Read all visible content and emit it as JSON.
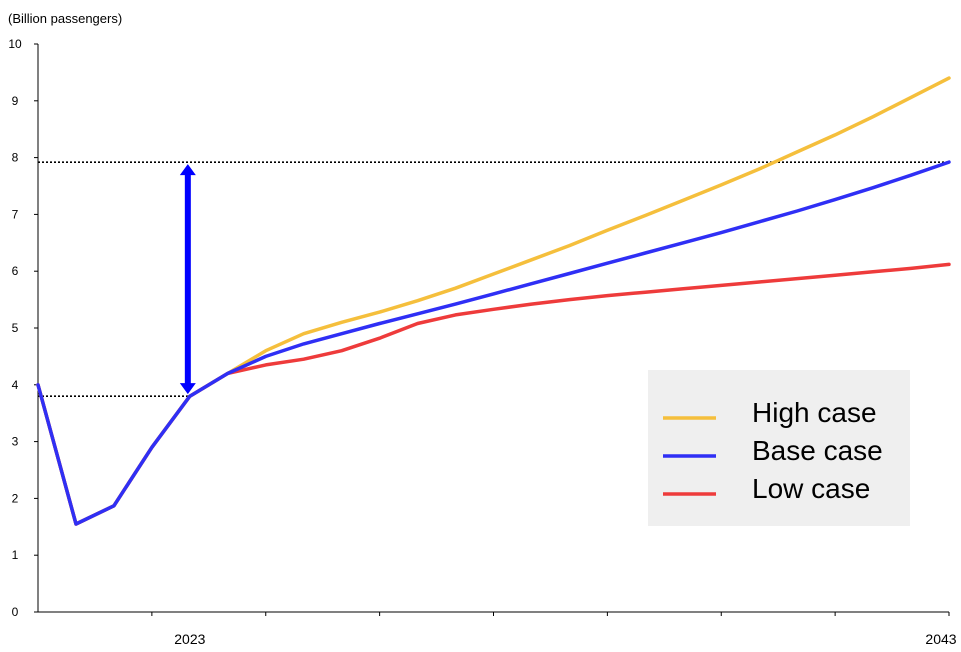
{
  "chart_data": {
    "type": "line",
    "unit_label": "(Billion passengers)",
    "y_ticks": [
      "0",
      "1",
      "2",
      "3",
      "4",
      "5",
      "6",
      "7",
      "8",
      "9",
      "10"
    ],
    "ylim": [
      0,
      10
    ],
    "xlim": [
      2019,
      2043
    ],
    "x_tick_labels": [
      {
        "x": 2023,
        "label": "2023"
      },
      {
        "x": 2043,
        "label": "2043"
      }
    ],
    "grid": false,
    "legend_position": "bottom-right",
    "series": [
      {
        "name": "High case",
        "color": "#f5bf3c",
        "x": [
          2019,
          2020,
          2021,
          2022,
          2023,
          2024,
          2025,
          2026,
          2027,
          2028,
          2029,
          2030,
          2031,
          2032,
          2033,
          2034,
          2035,
          2036,
          2037,
          2038,
          2039,
          2040,
          2041,
          2042,
          2043
        ],
        "y": [
          4.0,
          1.55,
          1.87,
          2.9,
          3.8,
          4.2,
          4.6,
          4.9,
          5.1,
          5.28,
          5.48,
          5.7,
          5.95,
          6.2,
          6.45,
          6.72,
          6.98,
          7.25,
          7.52,
          7.8,
          8.1,
          8.4,
          8.72,
          9.06,
          9.4
        ]
      },
      {
        "name": "Base case",
        "color": "#2f2ff5",
        "x": [
          2019,
          2020,
          2021,
          2022,
          2023,
          2024,
          2025,
          2026,
          2027,
          2028,
          2029,
          2030,
          2031,
          2032,
          2033,
          2034,
          2035,
          2036,
          2037,
          2038,
          2039,
          2040,
          2041,
          2042,
          2043
        ],
        "y": [
          4.0,
          1.55,
          1.87,
          2.9,
          3.8,
          4.2,
          4.5,
          4.72,
          4.9,
          5.08,
          5.25,
          5.42,
          5.6,
          5.78,
          5.96,
          6.14,
          6.32,
          6.5,
          6.68,
          6.87,
          7.06,
          7.26,
          7.47,
          7.69,
          7.92
        ]
      },
      {
        "name": "Low case",
        "color": "#ee3b3b",
        "x": [
          2019,
          2020,
          2021,
          2022,
          2023,
          2024,
          2025,
          2026,
          2027,
          2028,
          2029,
          2030,
          2031,
          2032,
          2033,
          2034,
          2035,
          2036,
          2037,
          2038,
          2039,
          2040,
          2041,
          2042,
          2043
        ],
        "y": [
          4.0,
          1.55,
          1.87,
          2.9,
          3.8,
          4.2,
          4.35,
          4.45,
          4.6,
          4.82,
          5.08,
          5.23,
          5.33,
          5.42,
          5.5,
          5.57,
          5.63,
          5.69,
          5.75,
          5.81,
          5.87,
          5.93,
          5.99,
          6.05,
          6.12
        ]
      }
    ],
    "annotations": {
      "reference_lines": [
        {
          "y": 3.8,
          "x_from": 2019,
          "x_to": 2023,
          "style": "dotted"
        },
        {
          "y": 7.92,
          "x_from": 2019,
          "x_to": 2043,
          "style": "dotted"
        }
      ],
      "double_arrow": {
        "x": 2023,
        "y_from": 3.8,
        "y_to": 7.92,
        "color": "#0000ff"
      }
    }
  }
}
